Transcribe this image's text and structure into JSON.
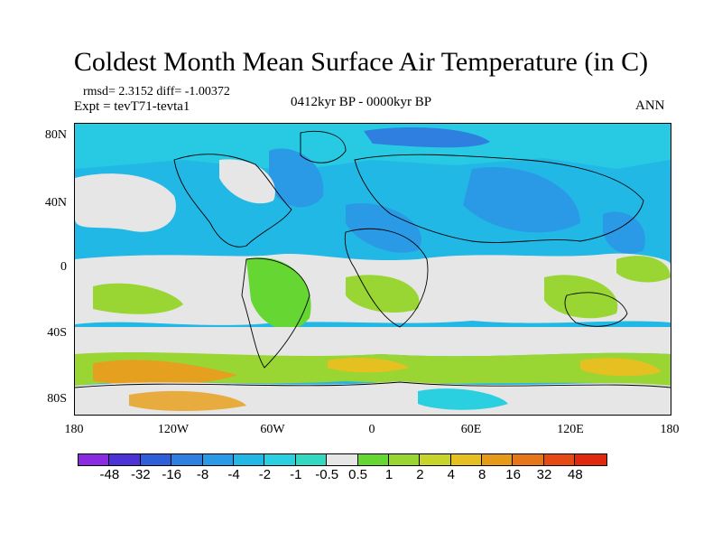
{
  "title": "Coldest Month Mean Surface Air Temperature (in C)",
  "stats": {
    "rmsd_line": "rmsd= 2.3152 diff= -1.00372"
  },
  "expt_line": "Expt = tevT71-tevta1",
  "period": "0412kyr BP - 0000kyr BP",
  "season": "ANN",
  "y_ticks": [
    "80N",
    "40N",
    "0",
    "40S",
    "80S"
  ],
  "x_ticks": [
    "180",
    "120W",
    "60W",
    "0",
    "60E",
    "120E",
    "180"
  ],
  "colorbar": {
    "labels": [
      "-48",
      "-32",
      "-16",
      "-8",
      "-4",
      "-2",
      "-1",
      "-0.5",
      "0.5",
      "1",
      "2",
      "4",
      "8",
      "16",
      "32",
      "48"
    ],
    "colors": [
      "#8a2be2",
      "#4b33d6",
      "#2f5fd8",
      "#2f7fe0",
      "#2a9ae6",
      "#22b8e6",
      "#2ad0e0",
      "#33d8c0",
      "#e6e6e6",
      "#66d633",
      "#99d633",
      "#c8d42a",
      "#e6c020",
      "#e69a1a",
      "#e6761a",
      "#e64a14",
      "#e02810"
    ]
  },
  "colors": {
    "background": "#ffffff",
    "coastline": "#000000",
    "neutral": "#e6e6e6"
  }
}
